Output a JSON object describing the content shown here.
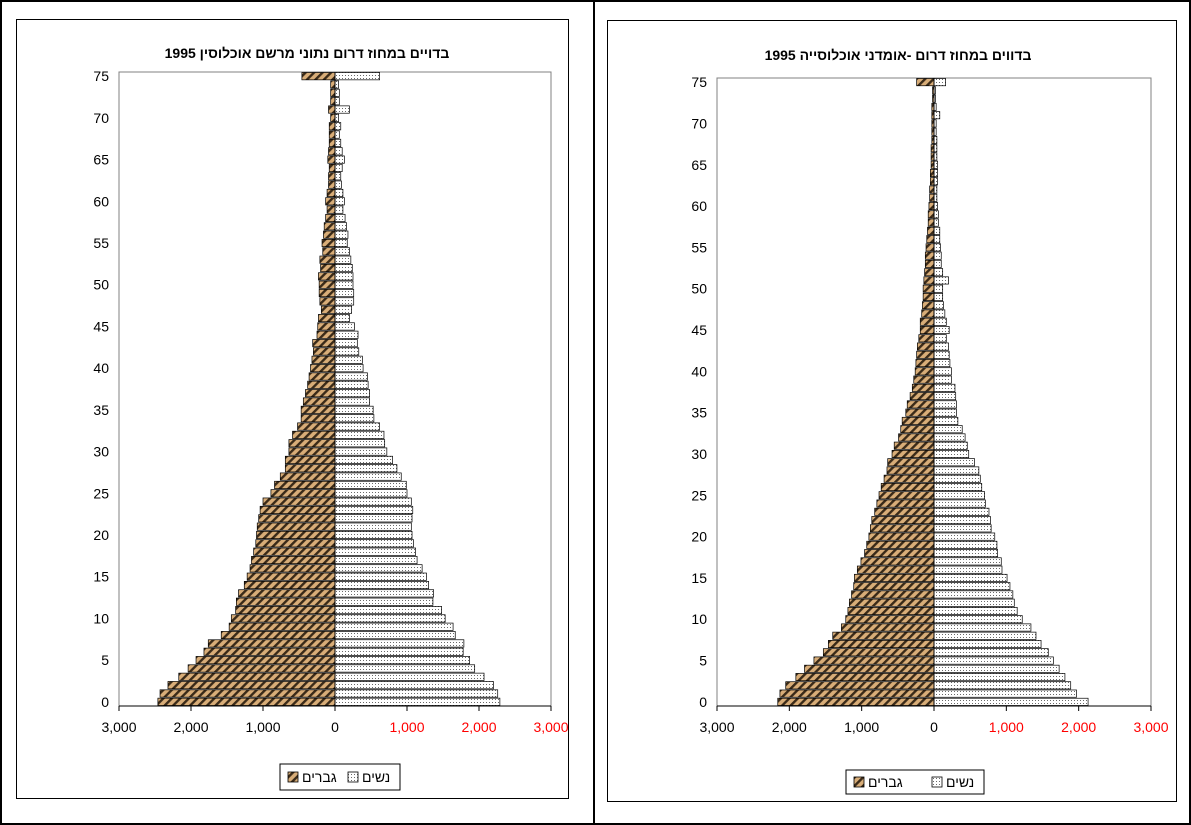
{
  "chart_data": [
    {
      "type": "bar",
      "orientation": "horizontal-pyramid",
      "title": "בדויים במחוז דרום נתוני מרשם אוכלוסין 1995",
      "y_ticks": [
        "0",
        "5",
        "10",
        "15",
        "20",
        "25",
        "30",
        "35",
        "40",
        "45",
        "50",
        "55",
        "60",
        "65",
        "70",
        "75"
      ],
      "x_ticks": [
        "3,000",
        "2,000",
        "1,000",
        "0",
        "1,000",
        "2,000",
        "3,000"
      ],
      "xlim": [
        -3000,
        3000
      ],
      "ylim": [
        0,
        75
      ],
      "legend": [
        "נשים",
        "גברים"
      ],
      "series": [
        {
          "name": "גברים",
          "side": "left",
          "values": [
            2460,
            2430,
            2320,
            2170,
            2040,
            1930,
            1820,
            1760,
            1580,
            1470,
            1440,
            1380,
            1370,
            1340,
            1260,
            1220,
            1180,
            1160,
            1130,
            1100,
            1090,
            1080,
            1060,
            1040,
            1000,
            890,
            840,
            760,
            690,
            690,
            640,
            640,
            590,
            520,
            470,
            470,
            440,
            410,
            380,
            360,
            340,
            320,
            300,
            310,
            250,
            240,
            230,
            190,
            210,
            220,
            220,
            230,
            200,
            210,
            170,
            180,
            160,
            150,
            130,
            110,
            130,
            110,
            90,
            90,
            80,
            100,
            90,
            80,
            80,
            80,
            60,
            90,
            60,
            60,
            60,
            460
          ]
        },
        {
          "name": "נשים",
          "side": "right",
          "values": [
            2290,
            2260,
            2200,
            2070,
            1940,
            1870,
            1780,
            1790,
            1670,
            1640,
            1530,
            1480,
            1360,
            1370,
            1300,
            1270,
            1210,
            1140,
            1120,
            1090,
            1070,
            1060,
            1070,
            1080,
            1060,
            1000,
            990,
            920,
            860,
            800,
            720,
            690,
            680,
            620,
            540,
            530,
            480,
            480,
            460,
            450,
            390,
            380,
            330,
            310,
            320,
            270,
            200,
            230,
            260,
            260,
            250,
            250,
            240,
            220,
            200,
            170,
            180,
            160,
            140,
            110,
            130,
            110,
            90,
            80,
            100,
            130,
            100,
            80,
            60,
            80,
            50,
            200,
            60,
            60,
            50,
            620
          ]
        }
      ]
    },
    {
      "type": "bar",
      "orientation": "horizontal-pyramid",
      "title": "בדווים במחוז דרום -אומדני אוכלוסייה 1995",
      "y_ticks": [
        "0",
        "5",
        "10",
        "15",
        "20",
        "25",
        "30",
        "35",
        "40",
        "45",
        "50",
        "55",
        "60",
        "65",
        "70",
        "75"
      ],
      "x_ticks": [
        "3,000",
        "2,000",
        "1,000",
        "0",
        "1,000",
        "2,000",
        "3,000"
      ],
      "xlim": [
        -3000,
        3000
      ],
      "ylim": [
        0,
        75
      ],
      "legend": [
        "נשים",
        "גברים"
      ],
      "series": [
        {
          "name": "גברים",
          "side": "left",
          "values": [
            2160,
            2130,
            2050,
            1910,
            1790,
            1660,
            1530,
            1460,
            1400,
            1280,
            1220,
            1190,
            1170,
            1140,
            1110,
            1100,
            1060,
            1010,
            960,
            930,
            900,
            880,
            860,
            820,
            790,
            760,
            730,
            690,
            650,
            640,
            580,
            550,
            490,
            460,
            440,
            390,
            370,
            330,
            300,
            280,
            260,
            250,
            240,
            230,
            210,
            190,
            190,
            170,
            160,
            150,
            150,
            140,
            130,
            120,
            120,
            110,
            100,
            90,
            80,
            80,
            70,
            60,
            60,
            50,
            50,
            40,
            40,
            40,
            30,
            30,
            30,
            30,
            30,
            20,
            20,
            240
          ]
        },
        {
          "name": "נשים",
          "side": "right",
          "values": [
            2130,
            1970,
            1890,
            1810,
            1730,
            1650,
            1580,
            1480,
            1410,
            1340,
            1220,
            1150,
            1110,
            1090,
            1050,
            1010,
            940,
            930,
            880,
            870,
            840,
            790,
            780,
            760,
            710,
            700,
            660,
            640,
            620,
            560,
            480,
            460,
            430,
            390,
            330,
            310,
            310,
            300,
            290,
            240,
            240,
            220,
            210,
            200,
            170,
            210,
            170,
            150,
            130,
            120,
            120,
            200,
            120,
            100,
            100,
            90,
            80,
            80,
            60,
            60,
            50,
            40,
            40,
            50,
            50,
            50,
            40,
            40,
            40,
            30,
            30,
            80,
            30,
            20,
            20,
            160
          ]
        }
      ]
    }
  ]
}
